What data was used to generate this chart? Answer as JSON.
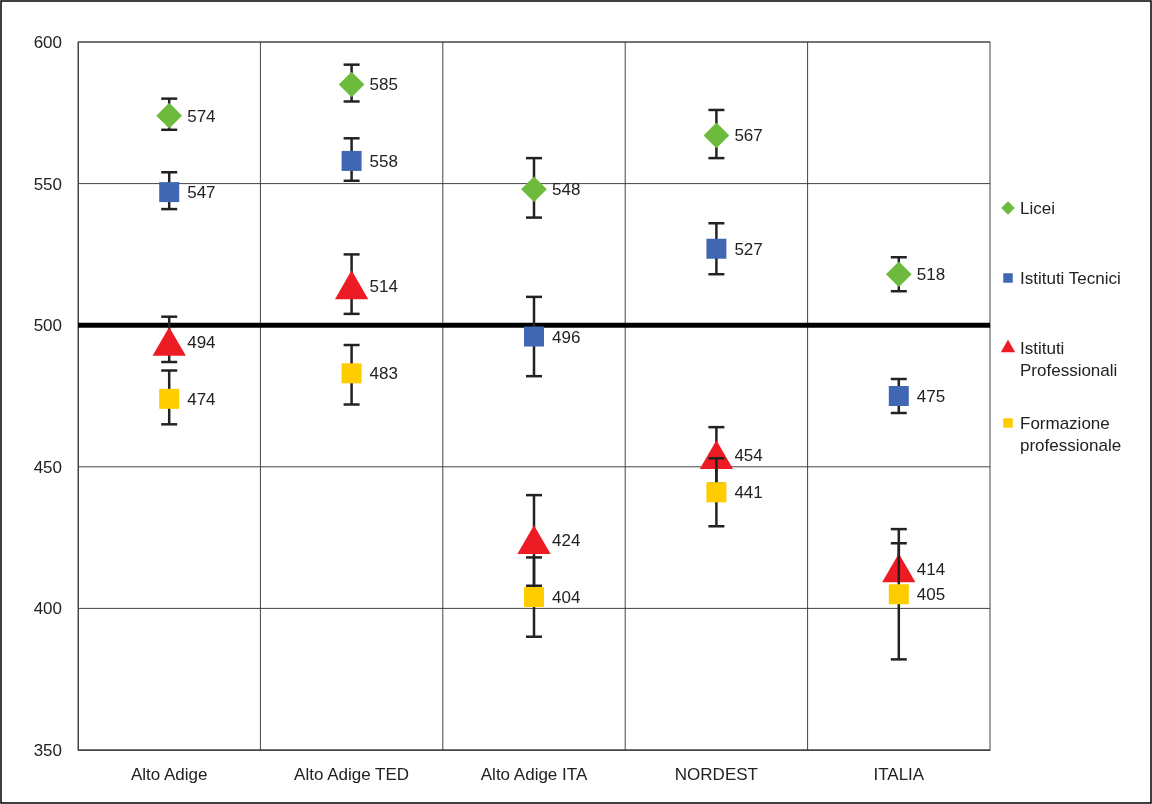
{
  "chart_data": {
    "type": "scatter",
    "categories": [
      "Alto Adige",
      "Alto Adige TED",
      "Alto Adige ITA",
      "NORDEST",
      "ITALIA"
    ],
    "series": [
      {
        "name": "Licei",
        "color": "#6cbb3c",
        "marker": "diamond",
        "values": [
          574,
          585,
          548,
          567,
          518
        ],
        "errors": [
          [
            569,
            580
          ],
          [
            579,
            592
          ],
          [
            538,
            559
          ],
          [
            559,
            576
          ],
          [
            512,
            524
          ]
        ]
      },
      {
        "name": "Istituti Tecnici",
        "color": "#4267b2",
        "marker": "square",
        "values": [
          547,
          558,
          496,
          527,
          475
        ],
        "errors": [
          [
            541,
            554
          ],
          [
            551,
            566
          ],
          [
            482,
            510
          ],
          [
            518,
            536
          ],
          [
            469,
            481
          ]
        ]
      },
      {
        "name": "Istituti Professionali",
        "color": "#ed1c24",
        "marker": "triangle",
        "values": [
          494,
          514,
          424,
          454,
          414
        ],
        "errors": [
          [
            487,
            503
          ],
          [
            504,
            525
          ],
          [
            408,
            440
          ],
          [
            444,
            464
          ],
          [
            414,
            423
          ]
        ]
      },
      {
        "name": "Formazione professionale",
        "color": "#ffcc00",
        "marker": "square",
        "values": [
          474,
          483,
          404,
          441,
          405
        ],
        "errors": [
          [
            465,
            484
          ],
          [
            472,
            493
          ],
          [
            390,
            418
          ],
          [
            429,
            453
          ],
          [
            382,
            428
          ]
        ]
      }
    ],
    "ylim": [
      350,
      600
    ],
    "yticks": [
      350,
      400,
      450,
      500,
      550,
      600
    ],
    "ref_lines": [
      {
        "axis": "y",
        "value": 500,
        "color": "#000000"
      }
    ],
    "grid": true,
    "legend": "right",
    "data_labels": true
  }
}
